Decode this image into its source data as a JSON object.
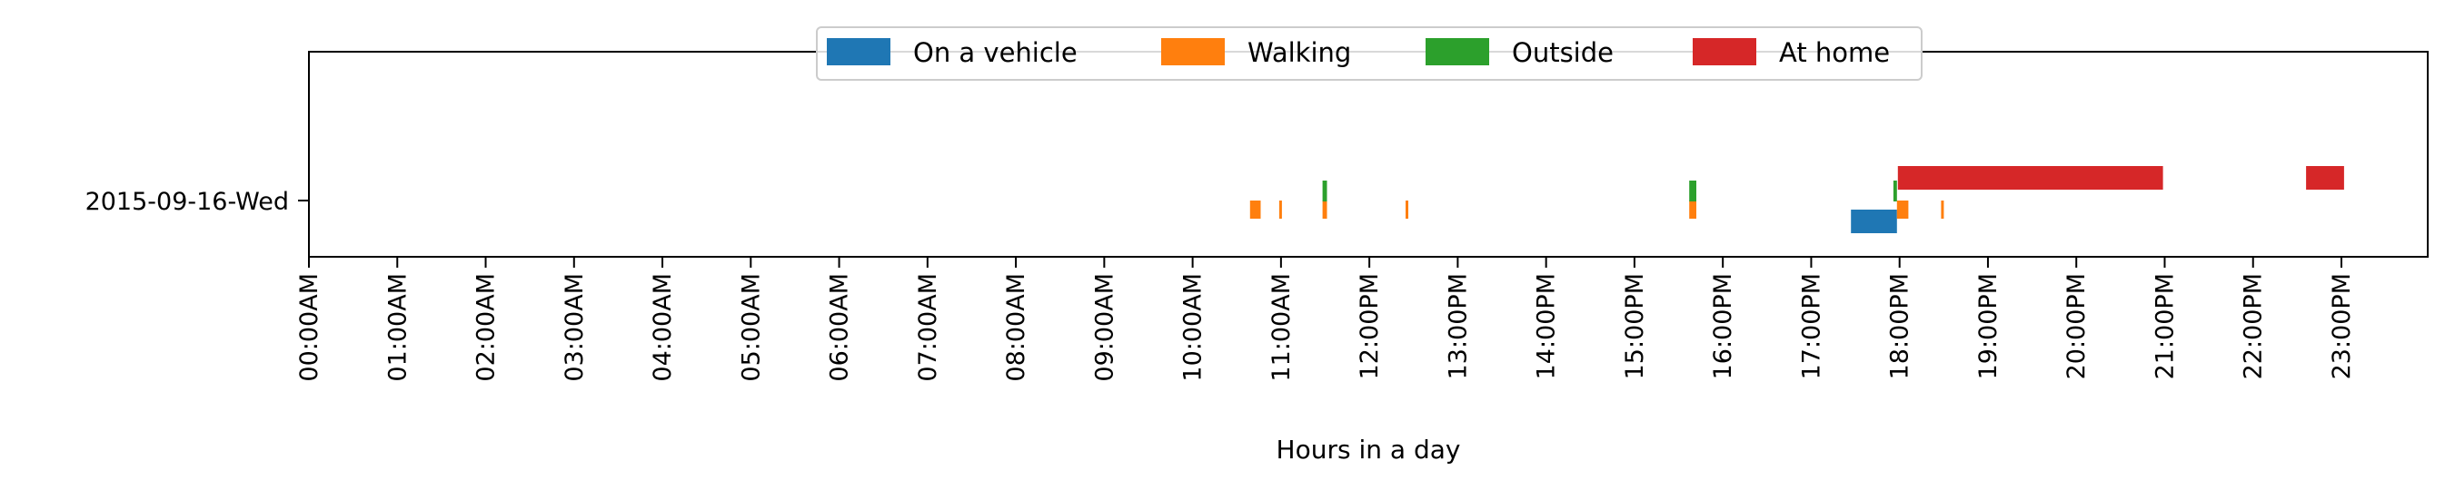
{
  "chart_data": {
    "type": "timeline",
    "title": "",
    "xlabel": "Hours in a day",
    "ylabel": "",
    "xlim": [
      0,
      24
    ],
    "x_ticks": [
      "00:00AM",
      "01:00AM",
      "02:00AM",
      "03:00AM",
      "04:00AM",
      "05:00AM",
      "06:00AM",
      "07:00AM",
      "08:00AM",
      "09:00AM",
      "10:00AM",
      "11:00AM",
      "12:00PM",
      "13:00PM",
      "14:00PM",
      "15:00PM",
      "16:00PM",
      "17:00PM",
      "18:00PM",
      "19:00PM",
      "20:00PM",
      "21:00PM",
      "22:00PM",
      "23:00PM"
    ],
    "categories": [
      "2015-09-16-Wed"
    ],
    "grid": false,
    "legend_position": "top-center",
    "series": [
      {
        "name": "On a vehicle",
        "color": "#1f77b4",
        "intervals": [
          [
            17.45,
            17.97
          ]
        ]
      },
      {
        "name": "Walking",
        "color": "#ff7f0e",
        "intervals": [
          [
            10.65,
            10.77
          ],
          [
            10.98,
            11.01
          ],
          [
            11.47,
            11.52
          ],
          [
            12.41,
            12.44
          ],
          [
            15.62,
            15.7
          ],
          [
            17.97,
            18.1
          ],
          [
            18.47,
            18.5
          ]
        ]
      },
      {
        "name": "Outside",
        "color": "#2ca02c",
        "intervals": [
          [
            11.47,
            11.52
          ],
          [
            15.62,
            15.7
          ],
          [
            17.93,
            17.97
          ]
        ]
      },
      {
        "name": "At home",
        "color": "#d62728",
        "intervals": [
          [
            17.98,
            20.98
          ],
          [
            22.6,
            23.03
          ]
        ]
      }
    ]
  }
}
